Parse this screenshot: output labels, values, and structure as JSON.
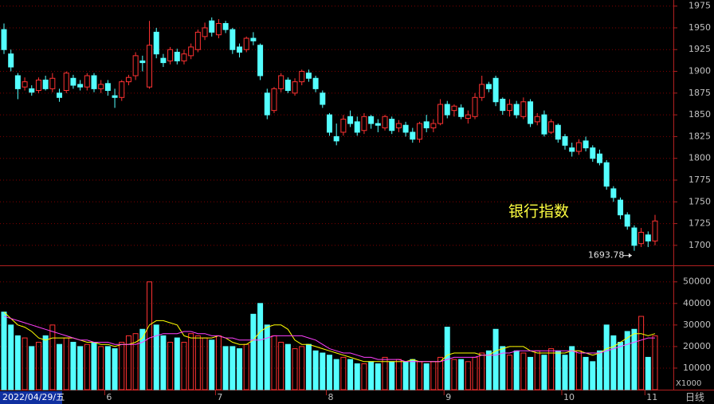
{
  "chart_data": {
    "type": "candlestick",
    "title": "银行指数",
    "cursor_date": "2022/04/29/五",
    "period_label": "日线",
    "volume_unit": "X1000",
    "up_color": "#ff3232",
    "down_color": "#54ffff",
    "grid": true,
    "ylim": [
      1677,
      1982
    ],
    "yticks": [
      1700,
      1725,
      1750,
      1775,
      1800,
      1825,
      1850,
      1875,
      1900,
      1925,
      1950,
      1975
    ],
    "volume_ylim": [
      0,
      57300
    ],
    "volume_yticks": [
      10000,
      20000,
      30000,
      40000,
      50000
    ],
    "xticks": [
      {
        "value": 15,
        "label": "6"
      },
      {
        "value": 31,
        "label": "7"
      },
      {
        "value": 47,
        "label": "8"
      },
      {
        "value": 64,
        "label": "9"
      },
      {
        "value": 81,
        "label": "10"
      },
      {
        "value": 93,
        "label": "11"
      }
    ],
    "ohlc": [
      [
        1948,
        1955,
        1920,
        1925
      ],
      [
        1920,
        1925,
        1900,
        1905
      ],
      [
        1895,
        1898,
        1868,
        1880
      ],
      [
        1882,
        1893,
        1878,
        1888
      ],
      [
        1880,
        1884,
        1872,
        1876
      ],
      [
        1878,
        1893,
        1875,
        1890
      ],
      [
        1890,
        1895,
        1878,
        1880
      ],
      [
        1880,
        1898,
        1876,
        1892
      ],
      [
        1875,
        1880,
        1865,
        1870
      ],
      [
        1878,
        1900,
        1875,
        1898
      ],
      [
        1892,
        1896,
        1880,
        1884
      ],
      [
        1885,
        1890,
        1878,
        1882
      ],
      [
        1882,
        1898,
        1878,
        1895
      ],
      [
        1895,
        1898,
        1876,
        1880
      ],
      [
        1880,
        1890,
        1875,
        1885
      ],
      [
        1886,
        1890,
        1872,
        1878
      ],
      [
        1872,
        1880,
        1858,
        1870
      ],
      [
        1870,
        1890,
        1866,
        1888
      ],
      [
        1888,
        1896,
        1884,
        1893
      ],
      [
        1895,
        1922,
        1890,
        1918
      ],
      [
        1912,
        1918,
        1900,
        1910
      ],
      [
        1882,
        1958,
        1880,
        1930
      ],
      [
        1945,
        1950,
        1915,
        1920
      ],
      [
        1915,
        1920,
        1905,
        1910
      ],
      [
        1912,
        1928,
        1908,
        1925
      ],
      [
        1922,
        1926,
        1908,
        1912
      ],
      [
        1912,
        1925,
        1908,
        1920
      ],
      [
        1918,
        1932,
        1914,
        1928
      ],
      [
        1925,
        1948,
        1922,
        1945
      ],
      [
        1940,
        1956,
        1936,
        1950
      ],
      [
        1958,
        1962,
        1940,
        1945
      ],
      [
        1942,
        1960,
        1938,
        1955
      ],
      [
        1955,
        1958,
        1944,
        1948
      ],
      [
        1948,
        1950,
        1920,
        1925
      ],
      [
        1928,
        1932,
        1916,
        1922
      ],
      [
        1925,
        1940,
        1922,
        1938
      ],
      [
        1938,
        1945,
        1930,
        1935
      ],
      [
        1930,
        1932,
        1890,
        1895
      ],
      [
        1875,
        1880,
        1845,
        1850
      ],
      [
        1855,
        1882,
        1852,
        1880
      ],
      [
        1880,
        1898,
        1876,
        1895
      ],
      [
        1890,
        1893,
        1875,
        1878
      ],
      [
        1875,
        1892,
        1872,
        1888
      ],
      [
        1888,
        1902,
        1884,
        1900
      ],
      [
        1898,
        1902,
        1888,
        1892
      ],
      [
        1892,
        1895,
        1876,
        1880
      ],
      [
        1875,
        1878,
        1858,
        1862
      ],
      [
        1850,
        1852,
        1826,
        1830
      ],
      [
        1825,
        1840,
        1815,
        1820
      ],
      [
        1830,
        1850,
        1826,
        1845
      ],
      [
        1848,
        1855,
        1836,
        1840
      ],
      [
        1842,
        1848,
        1826,
        1830
      ],
      [
        1832,
        1852,
        1828,
        1848
      ],
      [
        1848,
        1850,
        1834,
        1840
      ],
      [
        1840,
        1845,
        1830,
        1838
      ],
      [
        1835,
        1850,
        1832,
        1848
      ],
      [
        1845,
        1848,
        1828,
        1832
      ],
      [
        1835,
        1844,
        1830,
        1840
      ],
      [
        1838,
        1842,
        1825,
        1830
      ],
      [
        1830,
        1835,
        1818,
        1822
      ],
      [
        1822,
        1842,
        1818,
        1840
      ],
      [
        1842,
        1850,
        1830,
        1835
      ],
      [
        1835,
        1845,
        1830,
        1840
      ],
      [
        1840,
        1868,
        1838,
        1862
      ],
      [
        1862,
        1866,
        1846,
        1850
      ],
      [
        1855,
        1862,
        1848,
        1860
      ],
      [
        1858,
        1862,
        1845,
        1848
      ],
      [
        1846,
        1855,
        1840,
        1850
      ],
      [
        1848,
        1875,
        1845,
        1870
      ],
      [
        1870,
        1895,
        1866,
        1885
      ],
      [
        1885,
        1888,
        1876,
        1880
      ],
      [
        1892,
        1895,
        1860,
        1865
      ],
      [
        1868,
        1870,
        1850,
        1855
      ],
      [
        1855,
        1868,
        1848,
        1862
      ],
      [
        1862,
        1866,
        1846,
        1850
      ],
      [
        1848,
        1870,
        1845,
        1865
      ],
      [
        1865,
        1868,
        1836,
        1840
      ],
      [
        1842,
        1852,
        1838,
        1848
      ],
      [
        1850,
        1855,
        1825,
        1828
      ],
      [
        1830,
        1845,
        1828,
        1842
      ],
      [
        1838,
        1840,
        1818,
        1822
      ],
      [
        1825,
        1828,
        1810,
        1815
      ],
      [
        1812,
        1818,
        1802,
        1808
      ],
      [
        1808,
        1822,
        1804,
        1818
      ],
      [
        1820,
        1825,
        1808,
        1812
      ],
      [
        1812,
        1815,
        1796,
        1800
      ],
      [
        1805,
        1810,
        1792,
        1795
      ],
      [
        1795,
        1798,
        1764,
        1768
      ],
      [
        1765,
        1768,
        1750,
        1755
      ],
      [
        1752,
        1755,
        1730,
        1735
      ],
      [
        1735,
        1738,
        1718,
        1722
      ],
      [
        1720,
        1723,
        1693.78,
        1700
      ],
      [
        1702,
        1720,
        1698,
        1715
      ],
      [
        1712,
        1716,
        1698,
        1705
      ],
      [
        1705,
        1735,
        1700,
        1728
      ]
    ],
    "volume": [
      36000,
      30000,
      25000,
      24000,
      20000,
      22000,
      25000,
      30000,
      21000,
      24000,
      22000,
      20000,
      21000,
      22000,
      20000,
      20000,
      19000,
      22000,
      25000,
      26000,
      28000,
      50000,
      30000,
      25000,
      22000,
      24000,
      22000,
      26000,
      25000,
      24000,
      23000,
      25000,
      20000,
      20000,
      19000,
      21000,
      35000,
      40000,
      30000,
      25000,
      22000,
      21000,
      19000,
      20000,
      21000,
      18000,
      17000,
      16000,
      14000,
      15000,
      14000,
      12000,
      12000,
      13000,
      12000,
      15000,
      13000,
      14000,
      13000,
      14000,
      13000,
      12000,
      13000,
      15000,
      29000,
      14000,
      14000,
      13000,
      15000,
      17000,
      18000,
      28000,
      20000,
      16000,
      18000,
      17000,
      15000,
      18000,
      16000,
      19000,
      18000,
      16000,
      20000,
      18000,
      15000,
      13000,
      18000,
      30000,
      25000,
      22000,
      27000,
      28000,
      34000,
      15000,
      25000
    ],
    "volume_ma": [
      {
        "color": "#ffff00",
        "values": [
          36000,
          33000,
          30000,
          29000,
          27000,
          24000,
          23000,
          24000,
          24000,
          24000,
          24000,
          23000,
          22000,
          22000,
          21000,
          21000,
          20000,
          21000,
          21000,
          22000,
          24000,
          30000,
          32000,
          32000,
          31000,
          30000,
          25000,
          24000,
          24000,
          24000,
          24000,
          25000,
          24000,
          22000,
          21000,
          21000,
          23000,
          27000,
          29000,
          30000,
          30000,
          28000,
          23000,
          21000,
          21000,
          20000,
          19000,
          18000,
          17000,
          16000,
          15000,
          14000,
          13000,
          13000,
          13000,
          13000,
          13000,
          13000,
          13000,
          14000,
          13000,
          13000,
          13000,
          13000,
          16000,
          17000,
          17000,
          17000,
          17000,
          16000,
          16000,
          18000,
          19000,
          20000,
          20000,
          20000,
          18000,
          17000,
          17000,
          17000,
          17000,
          17000,
          18000,
          18000,
          17000,
          16000,
          17000,
          19000,
          20000,
          22000,
          24000,
          26000,
          26000,
          25000,
          26000
        ]
      },
      {
        "color": "#ff40ff",
        "values": [
          34000,
          33000,
          32000,
          31000,
          30000,
          29000,
          28000,
          27000,
          26000,
          25000,
          24000,
          23000,
          23000,
          22000,
          22000,
          22000,
          21000,
          21000,
          21000,
          21000,
          22000,
          24000,
          25000,
          26000,
          26000,
          26000,
          27000,
          27000,
          26000,
          26000,
          25000,
          25000,
          24000,
          24000,
          23000,
          23000,
          23000,
          23000,
          24000,
          25000,
          25000,
          25000,
          25000,
          25000,
          24000,
          23000,
          21000,
          19000,
          18000,
          17000,
          17000,
          16000,
          15000,
          15000,
          14000,
          14000,
          14000,
          14000,
          13000,
          13000,
          13000,
          13000,
          13000,
          13000,
          14000,
          15000,
          15000,
          15000,
          15000,
          16000,
          16000,
          16000,
          17000,
          17000,
          18000,
          18000,
          18000,
          18000,
          18000,
          18000,
          18000,
          18000,
          18000,
          17000,
          17000,
          17000,
          17000,
          18000,
          19000,
          20000,
          21000,
          22000,
          23000,
          24000,
          24000
        ]
      }
    ]
  }
}
